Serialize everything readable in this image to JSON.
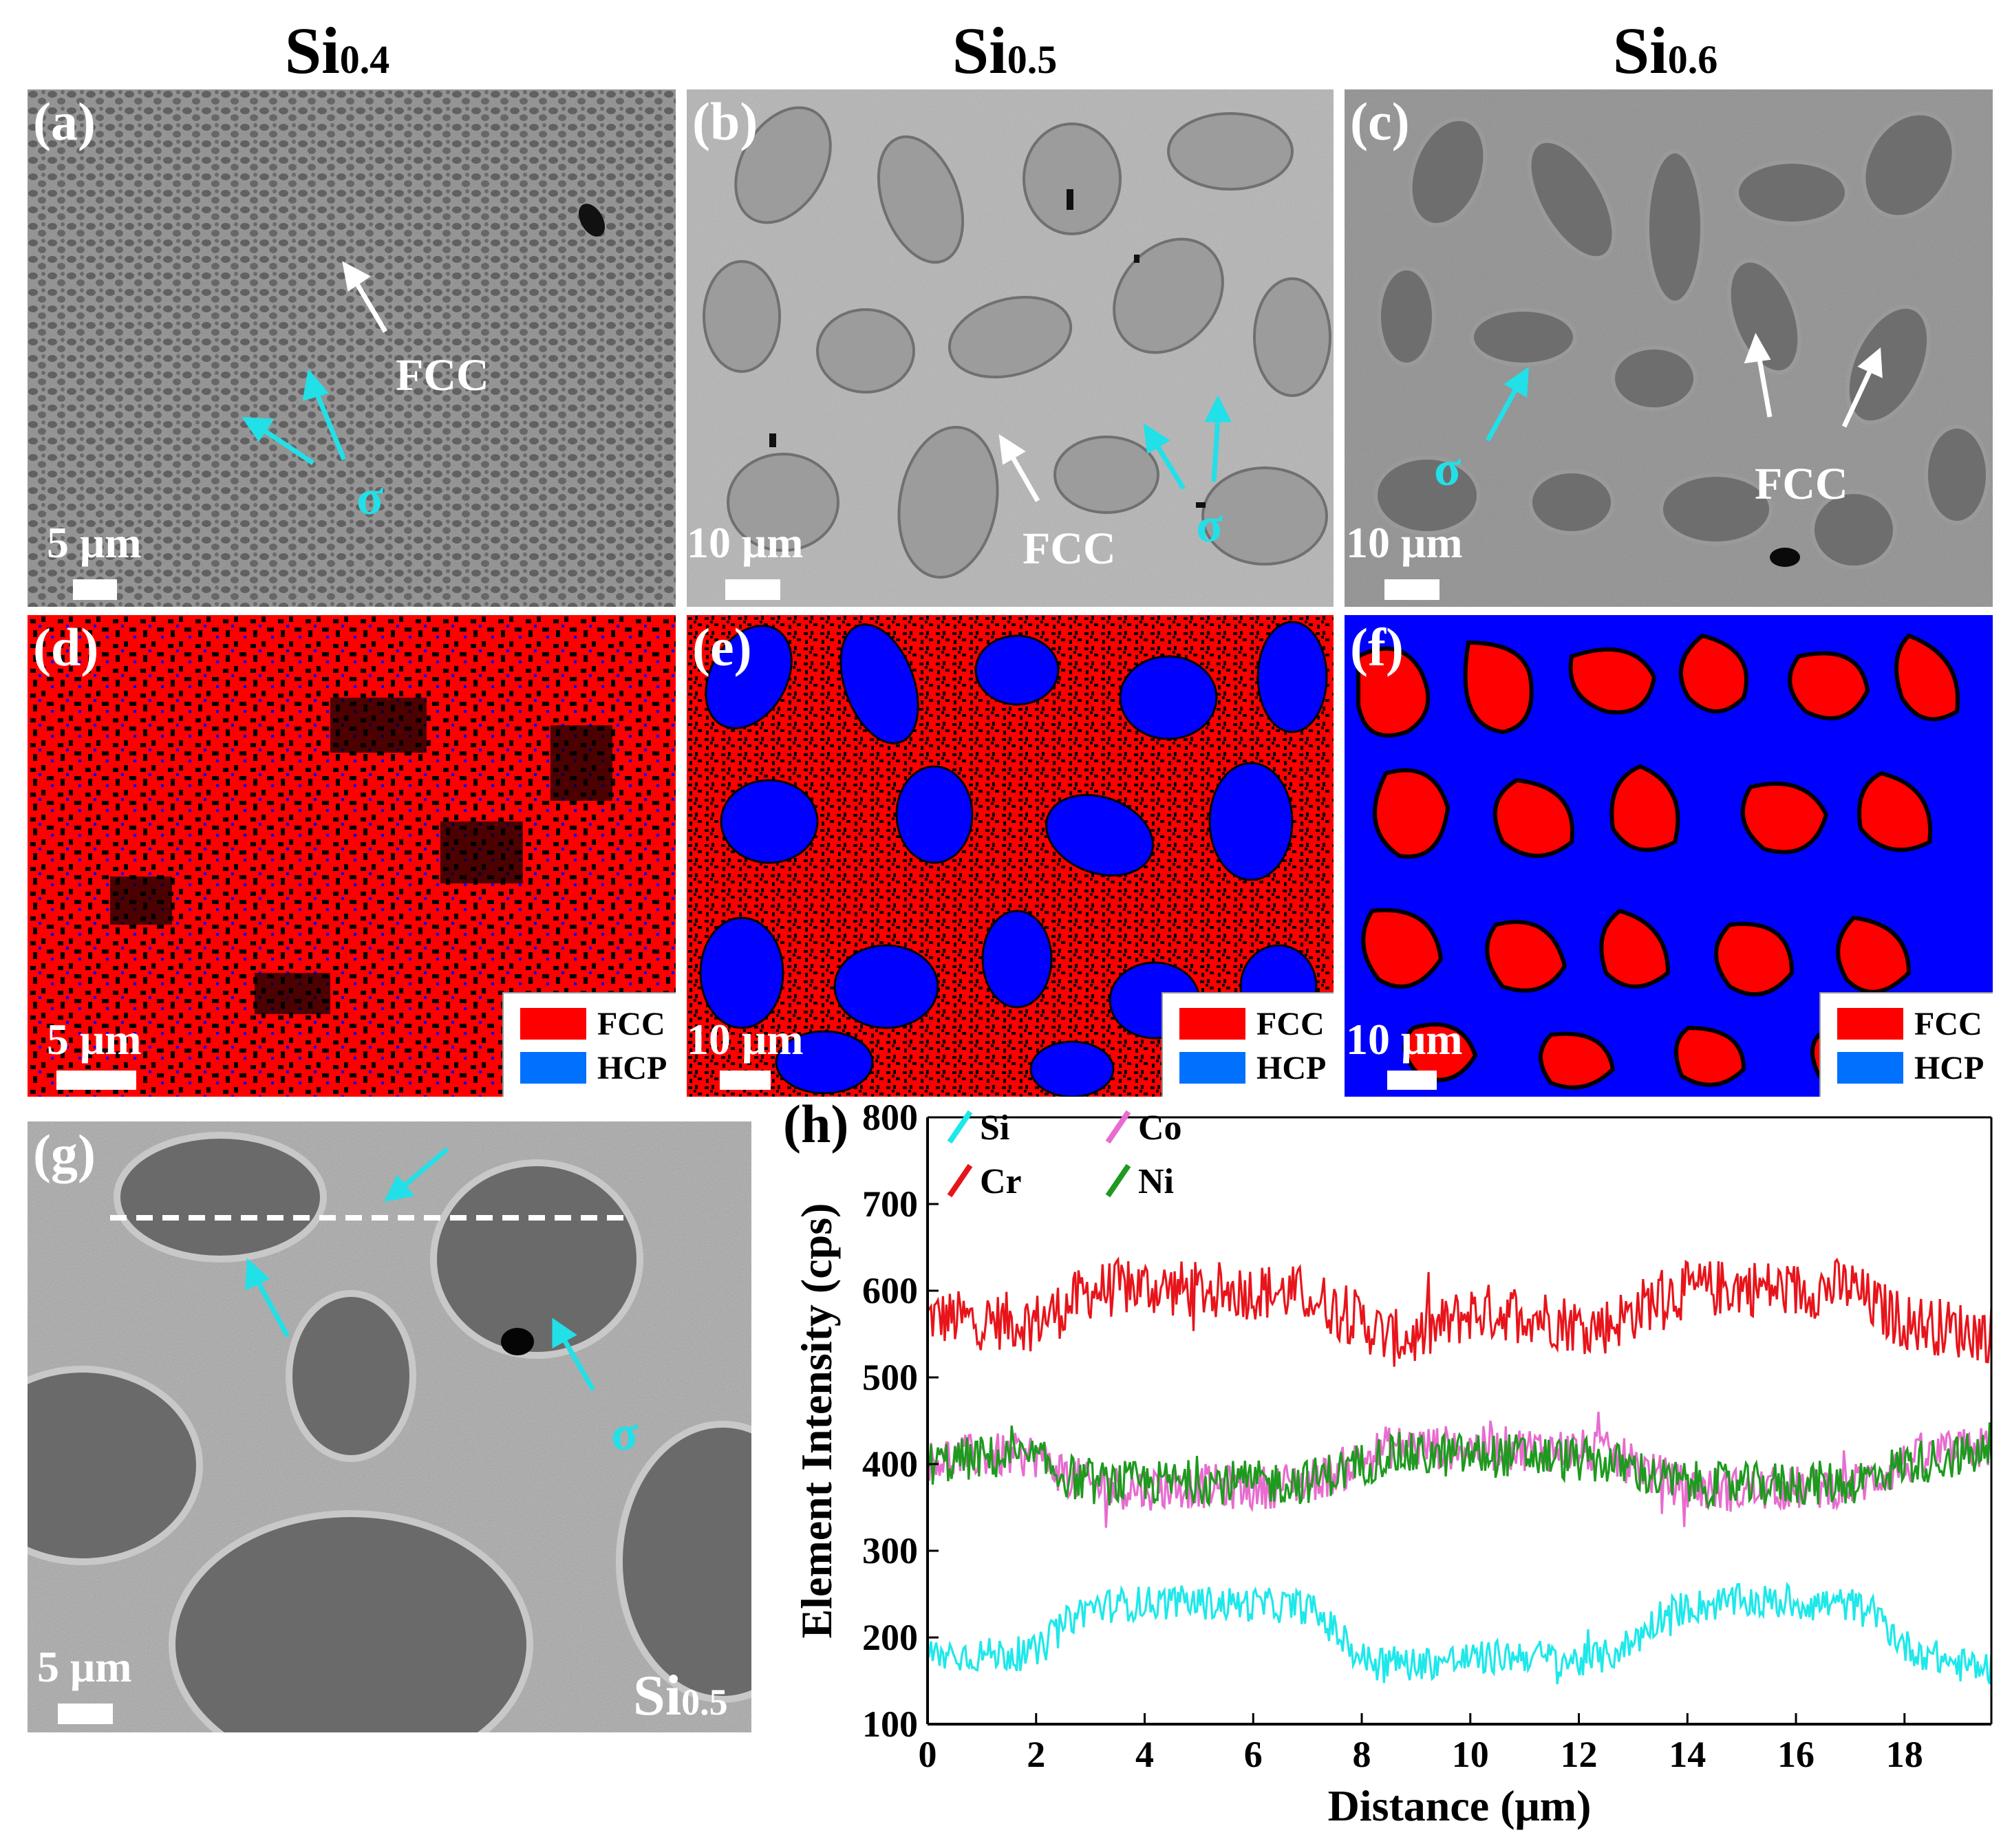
{
  "columns": [
    {
      "base": "Si",
      "sub": "0.4"
    },
    {
      "base": "Si",
      "sub": "0.5"
    },
    {
      "base": "Si",
      "sub": "0.6"
    }
  ],
  "panels": {
    "a": {
      "label": "(a)",
      "scale": "5 μm",
      "annotations": [
        "FCC",
        "σ"
      ]
    },
    "b": {
      "label": "(b)",
      "scale": "10 μm",
      "annotations": [
        "FCC",
        "σ"
      ]
    },
    "c": {
      "label": "(c)",
      "scale": "10 μm",
      "annotations": [
        "σ",
        "FCC"
      ]
    },
    "d": {
      "label": "(d)",
      "scale": "5 μm"
    },
    "e": {
      "label": "(e)",
      "scale": "10 μm"
    },
    "f": {
      "label": "(f)",
      "scale": "10 μm"
    },
    "g": {
      "label": "(g)",
      "scale": "5 μm",
      "sample_base": "Si",
      "sample_sub": "0.5",
      "annotations": [
        "σ"
      ]
    }
  },
  "phase_legend": [
    {
      "name": "FCC",
      "color": "#ff0000"
    },
    {
      "name": "HCP",
      "color": "#0070ff"
    }
  ],
  "colors": {
    "cyan": "#22e0e8",
    "fcc_red": "#ff0000",
    "hcp_blue": "#0000ff",
    "sem_gray": "#8a8a8a"
  },
  "chart_label": "(h)",
  "chart_data": {
    "type": "line",
    "xlabel": "Distance (μm)",
    "ylabel": "Element Intensity (cps)",
    "xlim": [
      0,
      19.6
    ],
    "ylim": [
      100,
      800
    ],
    "xticks": [
      0,
      2,
      4,
      6,
      8,
      10,
      12,
      14,
      16,
      18
    ],
    "yticks": [
      100,
      200,
      300,
      400,
      500,
      600,
      700,
      800
    ],
    "legend": [
      "Si",
      "Co",
      "Cr",
      "Ni"
    ],
    "series": [
      {
        "name": "Cr",
        "color": "#e8141b",
        "x": [
          0,
          1,
          2,
          2.5,
          3,
          4,
          5,
          6,
          7,
          7.5,
          8,
          8.5,
          9,
          10,
          11,
          12,
          12.5,
          13,
          13.5,
          14,
          15,
          16,
          17,
          17.5,
          18,
          19,
          19.6
        ],
        "y": [
          570,
          565,
          565,
          580,
          600,
          605,
          600,
          600,
          595,
          580,
          565,
          545,
          545,
          575,
          575,
          560,
          560,
          575,
          595,
          600,
          605,
          600,
          605,
          580,
          565,
          555,
          550
        ]
      },
      {
        "name": "Co",
        "color": "#e86ccf",
        "x": [
          0,
          1,
          2,
          2.5,
          3,
          4,
          5,
          6,
          7,
          7.5,
          8,
          8.5,
          9,
          10,
          11,
          12,
          12.5,
          13,
          13.5,
          14,
          15,
          16,
          17,
          17.5,
          18,
          19,
          19.6
        ],
        "y": [
          405,
          410,
          410,
          390,
          375,
          372,
          375,
          372,
          380,
          390,
          405,
          420,
          420,
          418,
          418,
          415,
          412,
          400,
          385,
          372,
          370,
          372,
          375,
          385,
          400,
          415,
          420
        ]
      },
      {
        "name": "Ni",
        "color": "#1e9a1e",
        "x": [
          0,
          1,
          2,
          2.5,
          3,
          4,
          5,
          6,
          7,
          7.5,
          8,
          8.5,
          9,
          10,
          11,
          12,
          12.5,
          13,
          13.5,
          14,
          15,
          16,
          17,
          17.5,
          18,
          19,
          19.6
        ],
        "y": [
          400,
          408,
          405,
          388,
          378,
          378,
          380,
          378,
          380,
          390,
          400,
          412,
          410,
          410,
          410,
          405,
          402,
          395,
          382,
          378,
          375,
          378,
          378,
          388,
          400,
          410,
          412
        ]
      },
      {
        "name": "Si",
        "color": "#1ee8ea",
        "x": [
          0,
          1,
          2,
          2.3,
          2.7,
          3,
          4,
          5,
          6,
          7,
          7.3,
          7.7,
          8,
          9,
          10,
          11,
          12,
          12.5,
          13,
          13.5,
          14,
          15,
          16,
          17,
          17.5,
          18,
          19,
          19.6
        ],
        "y": [
          180,
          180,
          182,
          200,
          225,
          235,
          240,
          240,
          238,
          235,
          220,
          195,
          175,
          170,
          175,
          180,
          172,
          178,
          195,
          225,
          235,
          242,
          240,
          238,
          225,
          190,
          168,
          165
        ]
      }
    ]
  }
}
